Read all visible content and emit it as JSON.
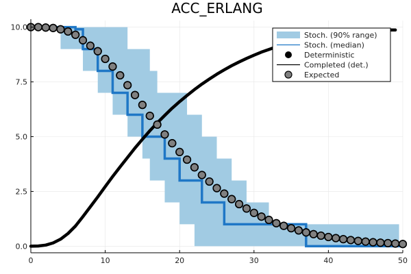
{
  "chart_data": {
    "type": "line",
    "title": "ACC_ERLANG",
    "xlabel": "",
    "ylabel": "",
    "xlim": [
      0,
      50
    ],
    "ylim": [
      -0.3,
      10.3
    ],
    "grid": true,
    "legend_position": "top-right",
    "x_ticks": [
      {
        "value": 0,
        "label": "0"
      },
      {
        "value": 10,
        "label": "10"
      },
      {
        "value": 20,
        "label": "20"
      },
      {
        "value": 30,
        "label": "30"
      },
      {
        "value": 40,
        "label": "40"
      },
      {
        "value": 50,
        "label": "50"
      }
    ],
    "y_ticks": [
      {
        "value": 0,
        "label": "0.0"
      },
      {
        "value": 2.5,
        "label": "2.5"
      },
      {
        "value": 5,
        "label": "5.0"
      },
      {
        "value": 7.5,
        "label": "7.5"
      },
      {
        "value": 10,
        "label": "10.0"
      }
    ],
    "colors": {
      "range_fill": "#a1cbe3",
      "median": "#1f77c6",
      "deterministic": "#000000",
      "completed": "#000000",
      "expected": "#808080"
    },
    "series": [
      {
        "name": "Stoch. (90% range)",
        "kind": "band",
        "lower": [
          [
            0,
            10
          ],
          [
            4,
            10
          ],
          [
            4,
            9
          ],
          [
            7,
            9
          ],
          [
            7,
            8
          ],
          [
            9,
            8
          ],
          [
            9,
            7
          ],
          [
            11,
            7
          ],
          [
            11,
            6
          ],
          [
            13,
            6
          ],
          [
            13,
            5
          ],
          [
            15,
            5
          ],
          [
            15,
            4
          ],
          [
            16,
            4
          ],
          [
            16,
            3
          ],
          [
            18,
            3
          ],
          [
            18,
            2
          ],
          [
            20,
            2
          ],
          [
            20,
            1
          ],
          [
            22,
            1
          ],
          [
            22,
            0
          ],
          [
            26,
            0
          ],
          [
            50,
            0
          ]
        ],
        "upper": [
          [
            0,
            10
          ],
          [
            13,
            10
          ],
          [
            13,
            9
          ],
          [
            16,
            9
          ],
          [
            16,
            8
          ],
          [
            17,
            8
          ],
          [
            17,
            7
          ],
          [
            21,
            7
          ],
          [
            21,
            6
          ],
          [
            23,
            6
          ],
          [
            23,
            5
          ],
          [
            25,
            5
          ],
          [
            25,
            4
          ],
          [
            27,
            4
          ],
          [
            27,
            3
          ],
          [
            29,
            3
          ],
          [
            29,
            2
          ],
          [
            32,
            2
          ],
          [
            32,
            1
          ],
          [
            41,
            1
          ],
          [
            50,
            1
          ]
        ],
        "x_end": 49.5
      },
      {
        "name": "Stoch. (median)",
        "kind": "step",
        "points": [
          [
            0,
            10
          ],
          [
            6,
            10
          ],
          [
            6,
            9.9
          ],
          [
            7,
            9.9
          ],
          [
            7,
            9
          ],
          [
            9,
            9
          ],
          [
            9,
            8
          ],
          [
            11,
            8
          ],
          [
            11,
            7
          ],
          [
            13,
            7
          ],
          [
            13,
            6
          ],
          [
            15,
            6
          ],
          [
            15,
            5
          ],
          [
            18,
            5
          ],
          [
            18,
            4
          ],
          [
            20,
            4
          ],
          [
            20,
            3
          ],
          [
            23,
            3
          ],
          [
            23,
            2
          ],
          [
            26,
            2
          ],
          [
            26,
            1
          ],
          [
            37,
            1
          ],
          [
            37,
            0
          ],
          [
            50,
            0
          ]
        ]
      },
      {
        "name": "Deterministic",
        "kind": "markers",
        "x": [
          0,
          1,
          2,
          3,
          4,
          5,
          6,
          7,
          8,
          9,
          10,
          11,
          12,
          13,
          14,
          15,
          16,
          17,
          18,
          19,
          20,
          21,
          22,
          23,
          24,
          25,
          26,
          27,
          28,
          29,
          30,
          31,
          32,
          33,
          34,
          35,
          36,
          37,
          38,
          39,
          40,
          41,
          42,
          43,
          44,
          45,
          46,
          47,
          48,
          49,
          50
        ],
        "y": [
          10.0,
          10.0,
          9.98,
          9.96,
          9.9,
          9.8,
          9.65,
          9.4,
          9.15,
          8.9,
          8.55,
          8.2,
          7.8,
          7.35,
          6.9,
          6.45,
          5.95,
          5.55,
          5.1,
          4.7,
          4.3,
          3.95,
          3.6,
          3.25,
          2.95,
          2.65,
          2.4,
          2.15,
          1.92,
          1.72,
          1.52,
          1.35,
          1.2,
          1.05,
          0.93,
          0.82,
          0.72,
          0.63,
          0.55,
          0.48,
          0.42,
          0.37,
          0.32,
          0.28,
          0.24,
          0.21,
          0.18,
          0.16,
          0.14,
          0.12,
          0.1
        ]
      },
      {
        "name": "Completed (det.)",
        "kind": "line",
        "x": [
          0,
          1,
          2,
          3,
          4,
          5,
          6,
          7,
          8,
          9,
          10,
          11,
          12,
          13,
          14,
          15,
          16,
          17,
          18,
          19,
          20,
          21,
          22,
          23,
          24,
          25,
          26,
          27,
          28,
          29,
          30,
          31,
          32,
          33,
          34,
          35,
          36,
          37,
          38,
          39,
          40,
          41,
          42,
          43,
          44,
          45,
          46,
          47,
          48,
          49
        ],
        "y": [
          0,
          0.01,
          0.05,
          0.15,
          0.32,
          0.58,
          0.92,
          1.35,
          1.8,
          2.25,
          2.72,
          3.18,
          3.62,
          4.05,
          4.48,
          4.88,
          5.27,
          5.63,
          5.97,
          6.3,
          6.6,
          6.88,
          7.15,
          7.4,
          7.63,
          7.85,
          8.05,
          8.24,
          8.41,
          8.57,
          8.72,
          8.86,
          8.98,
          9.1,
          9.21,
          9.31,
          9.4,
          9.48,
          9.56,
          9.62,
          9.68,
          9.73,
          9.77,
          9.8,
          9.83,
          9.85,
          9.86,
          9.87,
          9.87,
          9.87
        ]
      },
      {
        "name": "Expected",
        "kind": "markers",
        "x": [
          0,
          1,
          2,
          3,
          4,
          5,
          6,
          7,
          8,
          9,
          10,
          11,
          12,
          13,
          14,
          15,
          16,
          17,
          18,
          19,
          20,
          21,
          22,
          23,
          24,
          25,
          26,
          27,
          28,
          29,
          30,
          31,
          32,
          33,
          34,
          35,
          36,
          37,
          38,
          39,
          40,
          41,
          42,
          43,
          44,
          45,
          46,
          47,
          48,
          49,
          50
        ],
        "y": [
          10.0,
          10.0,
          9.98,
          9.96,
          9.9,
          9.8,
          9.65,
          9.4,
          9.15,
          8.9,
          8.55,
          8.2,
          7.8,
          7.35,
          6.9,
          6.45,
          5.95,
          5.55,
          5.1,
          4.7,
          4.3,
          3.95,
          3.6,
          3.25,
          2.95,
          2.65,
          2.4,
          2.15,
          1.92,
          1.72,
          1.52,
          1.35,
          1.2,
          1.05,
          0.93,
          0.82,
          0.72,
          0.63,
          0.55,
          0.48,
          0.42,
          0.37,
          0.32,
          0.28,
          0.24,
          0.21,
          0.18,
          0.16,
          0.14,
          0.12,
          0.1
        ]
      }
    ]
  }
}
